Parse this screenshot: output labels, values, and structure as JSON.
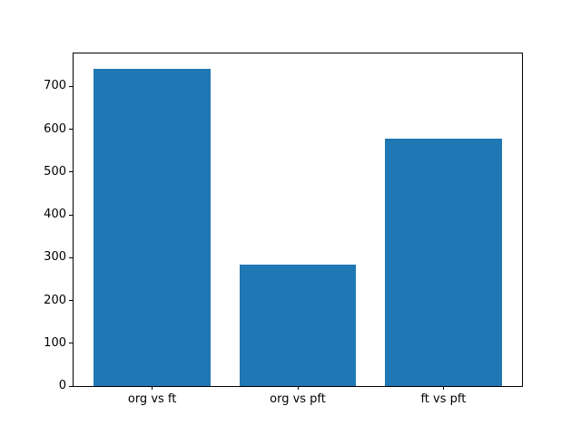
{
  "figure": {
    "background_color": "#ffffff",
    "axes_color": "#000000"
  },
  "chart_data": {
    "type": "bar",
    "title": "",
    "xlabel": "",
    "ylabel": "",
    "categories": [
      "org vs ft",
      "org vs pft",
      "ft vs pft"
    ],
    "values": [
      740,
      284,
      578
    ],
    "x_positions": [
      0,
      1,
      2
    ],
    "bar_width": 0.8,
    "bar_color": "#1f77b4",
    "yticks": [
      0,
      100,
      200,
      300,
      400,
      500,
      600,
      700
    ],
    "ylim": [
      0,
      777
    ],
    "xlim": [
      -0.54,
      2.54
    ],
    "grid": false,
    "legend": null
  }
}
